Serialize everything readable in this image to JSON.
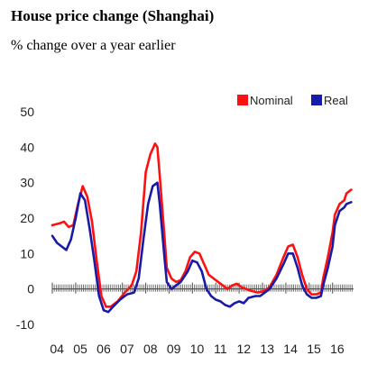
{
  "header": {
    "title": "House price change (Shanghai)",
    "subtitle": "% change over a year earlier"
  },
  "colors": {
    "nominal": "#ff1010",
    "real": "#1a1aa8",
    "zero_line": "#333333"
  },
  "chart_data": {
    "type": "line",
    "title": "House price change (Shanghai)",
    "subtitle": "% change over a year earlier",
    "xlabel": "",
    "ylabel": "",
    "ylim": [
      -10,
      50
    ],
    "yticks": [
      50,
      40,
      30,
      20,
      10,
      0,
      -10
    ],
    "xlim": [
      2004.0,
      2016.9
    ],
    "xtick_labels": [
      "04",
      "05",
      "06",
      "07",
      "08",
      "09",
      "10",
      "11",
      "12",
      "13",
      "14",
      "15",
      "16"
    ],
    "xtick_positions": [
      2004.2,
      2005.2,
      2006.2,
      2007.2,
      2008.2,
      2009.2,
      2010.2,
      2011.2,
      2012.2,
      2013.2,
      2014.2,
      2015.2,
      2016.2
    ],
    "legend": {
      "placement": "top-right",
      "entries": [
        "Nominal",
        "Real"
      ]
    },
    "grid": false,
    "series": [
      {
        "name": "Nominal",
        "points": [
          [
            2004.0,
            18
          ],
          [
            2004.3,
            18.5
          ],
          [
            2004.5,
            19
          ],
          [
            2004.7,
            17.5
          ],
          [
            2004.9,
            18
          ],
          [
            2005.1,
            24
          ],
          [
            2005.3,
            29
          ],
          [
            2005.5,
            26
          ],
          [
            2005.7,
            19
          ],
          [
            2005.9,
            8
          ],
          [
            2006.1,
            -2
          ],
          [
            2006.3,
            -5
          ],
          [
            2006.5,
            -5
          ],
          [
            2006.8,
            -3.5
          ],
          [
            2007.1,
            -1
          ],
          [
            2007.4,
            1
          ],
          [
            2007.6,
            5
          ],
          [
            2007.8,
            16
          ],
          [
            2008.0,
            33
          ],
          [
            2008.2,
            38
          ],
          [
            2008.4,
            41
          ],
          [
            2008.5,
            40
          ],
          [
            2008.6,
            32
          ],
          [
            2008.8,
            15
          ],
          [
            2008.9,
            6
          ],
          [
            2009.1,
            3
          ],
          [
            2009.3,
            2
          ],
          [
            2009.5,
            2.5
          ],
          [
            2009.7,
            5
          ],
          [
            2009.9,
            9
          ],
          [
            2010.1,
            10.5
          ],
          [
            2010.3,
            10
          ],
          [
            2010.5,
            7
          ],
          [
            2010.7,
            4
          ],
          [
            2010.9,
            3
          ],
          [
            2011.1,
            2
          ],
          [
            2011.3,
            1
          ],
          [
            2011.5,
            0
          ],
          [
            2011.7,
            1
          ],
          [
            2011.9,
            1.5
          ],
          [
            2012.1,
            0.5
          ],
          [
            2012.3,
            0
          ],
          [
            2012.5,
            -0.5
          ],
          [
            2012.8,
            -1
          ],
          [
            2013.1,
            -0.5
          ],
          [
            2013.3,
            0.5
          ],
          [
            2013.6,
            4
          ],
          [
            2013.9,
            9
          ],
          [
            2014.1,
            12
          ],
          [
            2014.3,
            12.5
          ],
          [
            2014.5,
            9
          ],
          [
            2014.7,
            4
          ],
          [
            2014.9,
            0
          ],
          [
            2015.1,
            -1.5
          ],
          [
            2015.3,
            -1.5
          ],
          [
            2015.5,
            -1
          ],
          [
            2015.6,
            3
          ],
          [
            2015.8,
            9
          ],
          [
            2016.0,
            16
          ],
          [
            2016.1,
            21
          ],
          [
            2016.3,
            24
          ],
          [
            2016.5,
            25
          ],
          [
            2016.6,
            27
          ],
          [
            2016.8,
            28
          ]
        ]
      },
      {
        "name": "Real",
        "points": [
          [
            2004.0,
            15
          ],
          [
            2004.2,
            13
          ],
          [
            2004.4,
            12
          ],
          [
            2004.6,
            11
          ],
          [
            2004.8,
            14
          ],
          [
            2005.0,
            20
          ],
          [
            2005.2,
            27
          ],
          [
            2005.4,
            25
          ],
          [
            2005.6,
            17
          ],
          [
            2005.8,
            8
          ],
          [
            2006.0,
            -2
          ],
          [
            2006.2,
            -6
          ],
          [
            2006.4,
            -6.5
          ],
          [
            2006.6,
            -5
          ],
          [
            2006.9,
            -3
          ],
          [
            2007.2,
            -1.5
          ],
          [
            2007.5,
            -1
          ],
          [
            2007.7,
            3
          ],
          [
            2007.9,
            14
          ],
          [
            2008.1,
            24
          ],
          [
            2008.3,
            29
          ],
          [
            2008.5,
            30
          ],
          [
            2008.6,
            24
          ],
          [
            2008.8,
            9
          ],
          [
            2008.9,
            2
          ],
          [
            2009.1,
            0
          ],
          [
            2009.3,
            1
          ],
          [
            2009.5,
            2
          ],
          [
            2009.8,
            5
          ],
          [
            2010.0,
            8
          ],
          [
            2010.2,
            7.5
          ],
          [
            2010.4,
            5
          ],
          [
            2010.6,
            0
          ],
          [
            2010.8,
            -2
          ],
          [
            2011.0,
            -3
          ],
          [
            2011.2,
            -3.5
          ],
          [
            2011.4,
            -4.5
          ],
          [
            2011.6,
            -5
          ],
          [
            2011.8,
            -4
          ],
          [
            2012.0,
            -3.5
          ],
          [
            2012.2,
            -4
          ],
          [
            2012.4,
            -2.5
          ],
          [
            2012.7,
            -2
          ],
          [
            2012.9,
            -2
          ],
          [
            2013.1,
            -1
          ],
          [
            2013.3,
            0
          ],
          [
            2013.6,
            3
          ],
          [
            2013.9,
            7
          ],
          [
            2014.1,
            10
          ],
          [
            2014.3,
            10
          ],
          [
            2014.5,
            6
          ],
          [
            2014.7,
            1
          ],
          [
            2014.9,
            -1.5
          ],
          [
            2015.1,
            -2.5
          ],
          [
            2015.3,
            -2.5
          ],
          [
            2015.5,
            -2
          ],
          [
            2015.6,
            1
          ],
          [
            2015.8,
            6
          ],
          [
            2016.0,
            12
          ],
          [
            2016.1,
            18
          ],
          [
            2016.3,
            22
          ],
          [
            2016.5,
            23
          ],
          [
            2016.6,
            24
          ],
          [
            2016.8,
            24.5
          ]
        ]
      }
    ]
  }
}
